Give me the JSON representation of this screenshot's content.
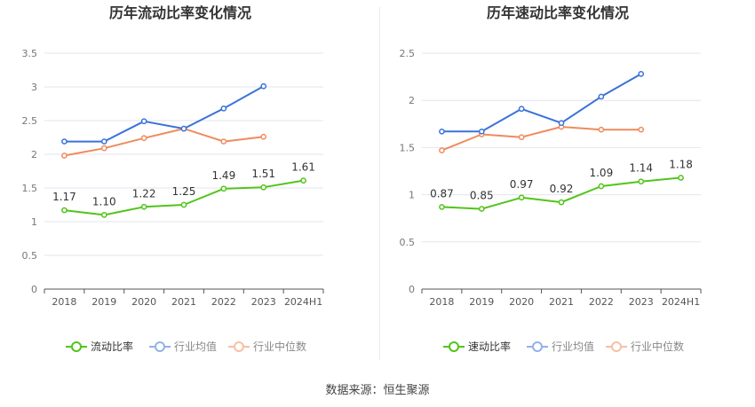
{
  "source": {
    "label": "数据来源：",
    "name": "恒生聚源"
  },
  "chart_data": [
    {
      "type": "line",
      "title": "历年流动比率变化情况",
      "categories": [
        "2018",
        "2019",
        "2020",
        "2021",
        "2022",
        "2023",
        "2024H1"
      ],
      "y_ticks": [
        "0",
        "0.5",
        "1",
        "1.5",
        "2",
        "2.5",
        "3",
        "3.5"
      ],
      "ylim": [
        0,
        3.5
      ],
      "grid": true,
      "legend_position": "bottom",
      "series": [
        {
          "name": "流动比率",
          "color": "#52c41a",
          "values": [
            1.17,
            1.1,
            1.22,
            1.25,
            1.49,
            1.51,
            1.61
          ],
          "labels": [
            "1.17",
            "1.10",
            "1.22",
            "1.25",
            "1.49",
            "1.51",
            "1.61"
          ]
        },
        {
          "name": "行业均值",
          "color": "#3a72d9",
          "values": [
            2.19,
            2.19,
            2.49,
            2.38,
            2.68,
            3.01,
            null
          ]
        },
        {
          "name": "行业中位数",
          "color": "#f08a5d",
          "values": [
            1.98,
            2.09,
            2.24,
            2.38,
            2.19,
            2.26,
            null
          ]
        }
      ]
    },
    {
      "type": "line",
      "title": "历年速动比率变化情况",
      "categories": [
        "2018",
        "2019",
        "2020",
        "2021",
        "2022",
        "2023",
        "2024H1"
      ],
      "y_ticks": [
        "0",
        "0.5",
        "1",
        "1.5",
        "2",
        "2.5"
      ],
      "ylim": [
        0,
        2.5
      ],
      "grid": true,
      "legend_position": "bottom",
      "series": [
        {
          "name": "速动比率",
          "color": "#52c41a",
          "values": [
            0.87,
            0.85,
            0.97,
            0.92,
            1.09,
            1.14,
            1.18
          ],
          "labels": [
            "0.87",
            "0.85",
            "0.97",
            "0.92",
            "1.09",
            "1.14",
            "1.18"
          ]
        },
        {
          "name": "行业均值",
          "color": "#3a72d9",
          "values": [
            1.67,
            1.67,
            1.91,
            1.76,
            2.04,
            2.28,
            null
          ]
        },
        {
          "name": "行业中位数",
          "color": "#f08a5d",
          "values": [
            1.47,
            1.64,
            1.61,
            1.72,
            1.69,
            1.69,
            null
          ]
        }
      ]
    }
  ]
}
